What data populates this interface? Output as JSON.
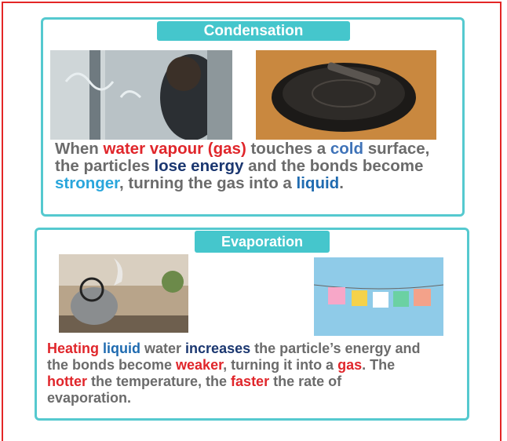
{
  "panels": [
    {
      "title": "Condensation",
      "text": [
        {
          "text": "When ",
          "color": "#6b6b6b"
        },
        {
          "text": "water vapour (gas)",
          "color": "#e0262b"
        },
        {
          "text": " touches a ",
          "color": "#6b6b6b"
        },
        {
          "text": "cold",
          "color": "#3f73b8"
        },
        {
          "text": " surface, the particles ",
          "color": "#6b6b6b"
        },
        {
          "text": "lose energy",
          "color": "#1b3770"
        },
        {
          "text": " and the bonds become ",
          "color": "#6b6b6b"
        },
        {
          "text": "stronger",
          "color": "#2aa6dc"
        },
        {
          "text": ", turning the gas into a ",
          "color": "#6b6b6b"
        },
        {
          "text": "liquid",
          "color": "#1f6bb0"
        },
        {
          "text": ".",
          "color": "#6b6b6b"
        }
      ]
    },
    {
      "title": "Evaporation",
      "text": [
        {
          "text": "Heating ",
          "color": "#e0262b"
        },
        {
          "text": "liquid",
          "color": "#1f6bb0"
        },
        {
          "text": " water ",
          "color": "#6b6b6b"
        },
        {
          "text": "increases",
          "color": "#1b3770"
        },
        {
          "text": " the particle’s energy and the bonds become ",
          "color": "#6b6b6b"
        },
        {
          "text": "weaker",
          "color": "#e0262b"
        },
        {
          "text": ", turning it into a ",
          "color": "#6b6b6b"
        },
        {
          "text": "gas",
          "color": "#e0262b"
        },
        {
          "text": ". The ",
          "color": "#6b6b6b"
        },
        {
          "text": "hotter",
          "color": "#e0262b"
        },
        {
          "text": " the temperature, the ",
          "color": "#6b6b6b"
        },
        {
          "text": "faster",
          "color": "#e0262b"
        },
        {
          "text": " the rate of evaporation.",
          "color": "#6b6b6b"
        }
      ]
    }
  ]
}
